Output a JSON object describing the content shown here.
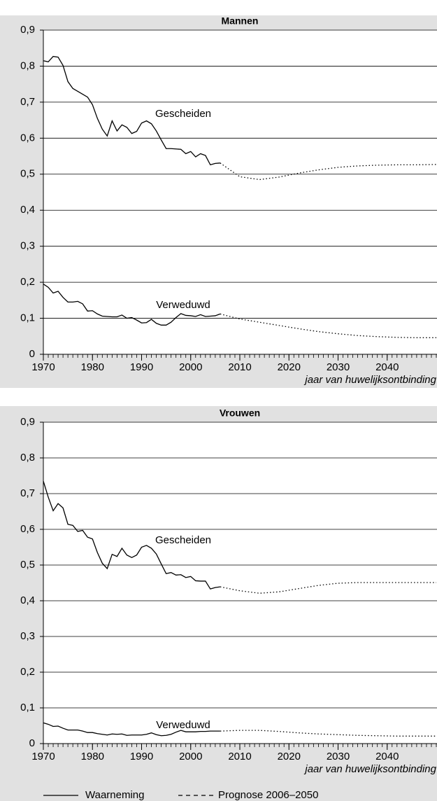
{
  "chart_data": [
    {
      "type": "line",
      "title": "Mannen",
      "x_label": "jaar van huwelijksontbinding",
      "xlim": [
        1970,
        2050
      ],
      "xticks": [
        1970,
        1980,
        1990,
        2000,
        2010,
        2020,
        2030,
        2040
      ],
      "ylim": [
        0,
        0.9
      ],
      "yticks": [
        0,
        {
          "value": 0.1,
          "label": "0,1"
        },
        {
          "value": 0.2,
          "label": "0,2"
        },
        {
          "value": 0.3,
          "label": "0,3"
        },
        {
          "value": 0.4,
          "label": "0,4"
        },
        {
          "value": 0.5,
          "label": "0,5"
        },
        {
          "value": 0.6,
          "label": "0,6"
        },
        {
          "value": 0.7,
          "label": "0,7"
        },
        {
          "value": 0.8,
          "label": "0,8"
        },
        {
          "value": 0.9,
          "label": "0,9"
        }
      ],
      "grid": true,
      "series": [
        {
          "name": "Gescheiden",
          "color": "#000000",
          "x": [
            1970,
            1971,
            1972,
            1973,
            1974,
            1975,
            1976,
            1977,
            1978,
            1979,
            1980,
            1981,
            1982,
            1983,
            1984,
            1985,
            1986,
            1987,
            1988,
            1989,
            1990,
            1991,
            1992,
            1993,
            1994,
            1995,
            1996,
            1997,
            1998,
            1999,
            2000,
            2001,
            2002,
            2003,
            2004,
            2005,
            2006
          ],
          "values": [
            0.815,
            0.812,
            0.827,
            0.825,
            0.802,
            0.757,
            0.738,
            0.73,
            0.722,
            0.714,
            0.693,
            0.655,
            0.625,
            0.606,
            0.648,
            0.62,
            0.637,
            0.63,
            0.613,
            0.619,
            0.642,
            0.648,
            0.64,
            0.62,
            0.595,
            0.571,
            0.571,
            0.57,
            0.569,
            0.557,
            0.563,
            0.548,
            0.557,
            0.552,
            0.526,
            0.53,
            0.531
          ],
          "forecast_x": [
            2006,
            2010,
            2014,
            2018,
            2022,
            2026,
            2030,
            2034,
            2038,
            2042,
            2046,
            2050
          ],
          "forecast_values": [
            0.531,
            0.493,
            0.485,
            0.492,
            0.503,
            0.512,
            0.519,
            0.523,
            0.525,
            0.526,
            0.526,
            0.527
          ]
        },
        {
          "name": "Verweduwd",
          "color": "#000000",
          "x": [
            1970,
            1971,
            1972,
            1973,
            1974,
            1975,
            1976,
            1977,
            1978,
            1979,
            1980,
            1981,
            1982,
            1983,
            1984,
            1985,
            1986,
            1987,
            1988,
            1989,
            1990,
            1991,
            1992,
            1993,
            1994,
            1995,
            1996,
            1997,
            1998,
            1999,
            2000,
            2001,
            2002,
            2003,
            2004,
            2005,
            2006
          ],
          "values": [
            0.195,
            0.186,
            0.17,
            0.175,
            0.158,
            0.145,
            0.145,
            0.147,
            0.14,
            0.12,
            0.121,
            0.112,
            0.106,
            0.105,
            0.104,
            0.104,
            0.109,
            0.1,
            0.102,
            0.095,
            0.087,
            0.088,
            0.097,
            0.086,
            0.081,
            0.081,
            0.089,
            0.102,
            0.113,
            0.108,
            0.107,
            0.105,
            0.11,
            0.105,
            0.106,
            0.107,
            0.112
          ],
          "forecast_x": [
            2006,
            2010,
            2014,
            2018,
            2022,
            2026,
            2030,
            2034,
            2038,
            2042,
            2046,
            2050
          ],
          "forecast_values": [
            0.112,
            0.098,
            0.089,
            0.08,
            0.071,
            0.063,
            0.057,
            0.052,
            0.049,
            0.047,
            0.046,
            0.046
          ]
        }
      ]
    },
    {
      "type": "line",
      "title": "Vrouwen",
      "x_label": "jaar van huwelijksontbinding",
      "xlim": [
        1970,
        2050
      ],
      "xticks": [
        1970,
        1980,
        1990,
        2000,
        2010,
        2020,
        2030,
        2040
      ],
      "ylim": [
        0,
        0.9
      ],
      "yticks": [
        0,
        {
          "value": 0.1,
          "label": "0,1"
        },
        {
          "value": 0.2,
          "label": "0,2"
        },
        {
          "value": 0.3,
          "label": "0,3"
        },
        {
          "value": 0.4,
          "label": "0,4"
        },
        {
          "value": 0.5,
          "label": "0,5"
        },
        {
          "value": 0.6,
          "label": "0,6"
        },
        {
          "value": 0.7,
          "label": "0,7"
        },
        {
          "value": 0.8,
          "label": "0,8"
        },
        {
          "value": 0.9,
          "label": "0,9"
        }
      ],
      "grid": true,
      "series": [
        {
          "name": "Gescheiden",
          "color": "#000000",
          "x": [
            1970,
            1971,
            1972,
            1973,
            1974,
            1975,
            1976,
            1977,
            1978,
            1979,
            1980,
            1981,
            1982,
            1983,
            1984,
            1985,
            1986,
            1987,
            1988,
            1989,
            1990,
            1991,
            1992,
            1993,
            1994,
            1995,
            1996,
            1997,
            1998,
            1999,
            2000,
            2001,
            2002,
            2003,
            2004,
            2005,
            2006
          ],
          "values": [
            0.735,
            0.69,
            0.652,
            0.672,
            0.66,
            0.614,
            0.611,
            0.594,
            0.597,
            0.578,
            0.573,
            0.535,
            0.505,
            0.49,
            0.53,
            0.524,
            0.547,
            0.528,
            0.521,
            0.528,
            0.55,
            0.555,
            0.547,
            0.531,
            0.503,
            0.476,
            0.479,
            0.472,
            0.473,
            0.465,
            0.468,
            0.456,
            0.455,
            0.455,
            0.433,
            0.437,
            0.439
          ],
          "forecast_x": [
            2006,
            2010,
            2014,
            2018,
            2022,
            2026,
            2030,
            2034,
            2038,
            2042,
            2046,
            2050
          ],
          "forecast_values": [
            0.439,
            0.428,
            0.421,
            0.425,
            0.434,
            0.443,
            0.449,
            0.451,
            0.451,
            0.451,
            0.451,
            0.451
          ]
        },
        {
          "name": "Verweduwd",
          "color": "#000000",
          "x": [
            1970,
            1971,
            1972,
            1973,
            1974,
            1975,
            1976,
            1977,
            1978,
            1979,
            1980,
            1981,
            1982,
            1983,
            1984,
            1985,
            1986,
            1987,
            1988,
            1989,
            1990,
            1991,
            1992,
            1993,
            1994,
            1995,
            1996,
            1997,
            1998,
            1999,
            2000,
            2001,
            2002,
            2003,
            2004,
            2005,
            2006
          ],
          "values": [
            0.058,
            0.054,
            0.048,
            0.049,
            0.043,
            0.038,
            0.038,
            0.038,
            0.035,
            0.031,
            0.031,
            0.028,
            0.026,
            0.024,
            0.027,
            0.026,
            0.027,
            0.023,
            0.024,
            0.024,
            0.024,
            0.026,
            0.03,
            0.025,
            0.022,
            0.023,
            0.026,
            0.032,
            0.037,
            0.033,
            0.033,
            0.033,
            0.034,
            0.034,
            0.035,
            0.035,
            0.035
          ],
          "forecast_x": [
            2006,
            2010,
            2014,
            2018,
            2022,
            2026,
            2030,
            2034,
            2038,
            2042,
            2046,
            2050
          ],
          "forecast_values": [
            0.035,
            0.037,
            0.037,
            0.034,
            0.03,
            0.027,
            0.025,
            0.023,
            0.022,
            0.021,
            0.021,
            0.021
          ]
        }
      ]
    }
  ],
  "legend": [
    {
      "label": "Waarneming",
      "style": "solid"
    },
    {
      "label": "Prognose 2006–2050",
      "style": "dashed"
    }
  ]
}
